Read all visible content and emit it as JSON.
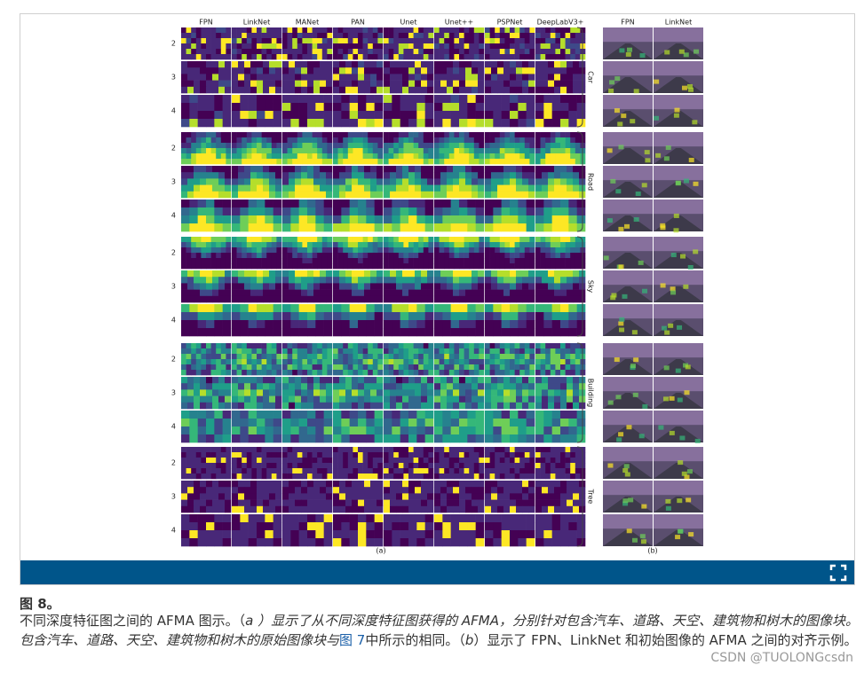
{
  "figure": {
    "panel_a": {
      "columns": [
        "FPN",
        "LinkNet",
        "MANet",
        "PAN",
        "Unet",
        "Unet++",
        "PSPNet",
        "DeepLabV3+"
      ],
      "rows": [
        "2",
        "3",
        "4"
      ],
      "classes": [
        "Car",
        "Road",
        "Sky",
        "Building",
        "Tree"
      ],
      "label": "(a)"
    },
    "panel_b": {
      "columns": [
        "FPN",
        "LinkNet"
      ],
      "label": "(b)"
    }
  },
  "caption": {
    "label": "图 8。",
    "segments": [
      "不同深度特征图之间的 AFMA 图示。（",
      "a",
      " ）显示了从不同深度特征图获得的 AFMA，分别针对包含汽车、道路、天空、建筑物和树木的图像块。包含汽车、道路、天空、建筑物和树木的原始图像块与",
      "图 7",
      "中所示的相同。（",
      "b",
      "）显示了 FPN、LinkNet 和初始图像的 AFMA 之间的对齐示例。"
    ]
  },
  "watermark": "CSDN @TUOLONGcsdn"
}
